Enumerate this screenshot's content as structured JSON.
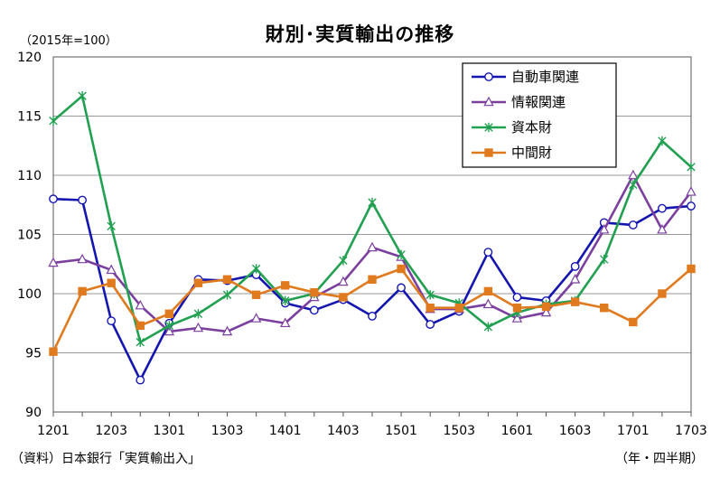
{
  "chart_data": {
    "type": "line",
    "title": "財別･実質輸出の推移",
    "unit_label": "（2015年=100）",
    "source": "（資料）日本銀行「実質輸出入」",
    "period_label": "（年・四半期）",
    "x": [
      "1201",
      "1202",
      "1203",
      "1204",
      "1301",
      "1302",
      "1303",
      "1304",
      "1401",
      "1402",
      "1403",
      "1404",
      "1501",
      "1502",
      "1503",
      "1504",
      "1601",
      "1602",
      "1603",
      "1604",
      "1701",
      "1702",
      "1703"
    ],
    "x_tick_labels": [
      "1201",
      "1203",
      "1301",
      "1303",
      "1401",
      "1403",
      "1501",
      "1503",
      "1601",
      "1603",
      "1701",
      "1703"
    ],
    "ylim": [
      90,
      120
    ],
    "y_ticks": [
      90,
      95,
      100,
      105,
      110,
      115,
      120
    ],
    "grid": true,
    "legend_position": "top-right",
    "series": [
      {
        "name": "自動車関連",
        "color": "#1515b0",
        "marker": "circle",
        "values": [
          108.0,
          107.9,
          97.7,
          92.7,
          97.5,
          101.2,
          101.1,
          101.6,
          99.2,
          98.6,
          99.5,
          98.1,
          100.5,
          97.4,
          98.5,
          103.5,
          99.7,
          99.4,
          102.3,
          106.0,
          105.8,
          107.2,
          107.4
        ]
      },
      {
        "name": "情報関連",
        "color": "#7b3f9e",
        "marker": "triangle",
        "values": [
          102.6,
          102.9,
          102.0,
          99.0,
          96.8,
          97.1,
          96.8,
          97.9,
          97.5,
          99.7,
          101.0,
          103.9,
          103.1,
          98.7,
          98.7,
          99.1,
          97.9,
          98.4,
          101.2,
          105.4,
          110.0,
          105.4,
          108.6
        ]
      },
      {
        "name": "資本財",
        "color": "#22a052",
        "marker": "x",
        "values": [
          114.6,
          116.7,
          105.7,
          95.9,
          97.3,
          98.3,
          99.9,
          102.1,
          99.4,
          100.0,
          102.8,
          107.7,
          103.3,
          99.9,
          99.2,
          97.2,
          98.4,
          99.1,
          99.4,
          102.9,
          109.2,
          112.9,
          110.7
        ]
      },
      {
        "name": "中間財",
        "color": "#e07a1f",
        "marker": "square",
        "values": [
          95.1,
          100.2,
          100.9,
          97.3,
          98.3,
          100.9,
          101.2,
          99.9,
          100.7,
          100.1,
          99.7,
          101.2,
          102.1,
          98.8,
          98.8,
          100.2,
          98.8,
          98.9,
          99.3,
          98.8,
          97.6,
          100.0,
          102.1
        ]
      }
    ]
  }
}
